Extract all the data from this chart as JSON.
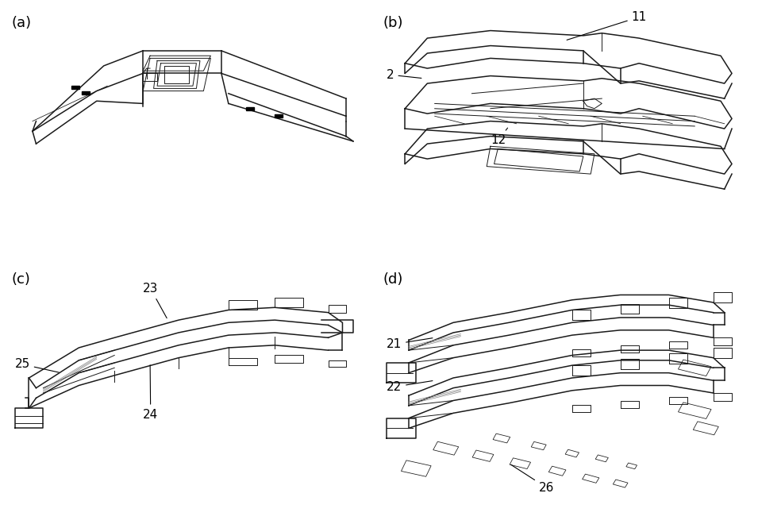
{
  "background_color": "#ffffff",
  "label_a": "(a)",
  "label_b": "(b)",
  "label_c": "(c)",
  "label_d": "(d)",
  "label_fontsize": 13,
  "annotation_fontsize": 11,
  "fig_width": 9.55,
  "fig_height": 6.6
}
